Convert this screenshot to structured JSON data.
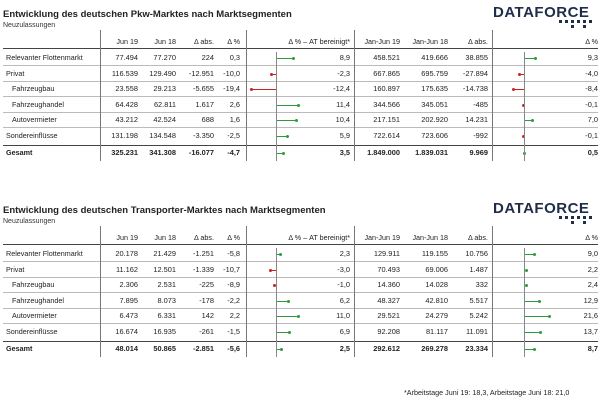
{
  "colors": {
    "positive": "#2e9a3a",
    "negative": "#cc2222",
    "brand": "#1f2d4a"
  },
  "brand": {
    "logo_text": "DATAFORCE"
  },
  "columns": [
    "Jun 19",
    "Jun 18",
    "Δ abs.",
    "Δ %",
    "Δ % – AT bereinigt*",
    "Jan-Jun 19",
    "Jan-Jun 18",
    "Δ abs.",
    "Δ %"
  ],
  "tables": [
    {
      "title": "Entwicklung des deutschen Pkw-Marktes nach Marktsegmenten",
      "subtitle": "Neuzulassungen",
      "rows": [
        {
          "label": "Relevanter Flottenmarkt",
          "jun19": "77.494",
          "jun18": "77.270",
          "dabs": "224",
          "dpct": "0,3",
          "at": "8,9",
          "at_val": 8.9,
          "hy19": "458.521",
          "hy18": "419.666",
          "hyabs": "38.855",
          "hypct": "9,3",
          "hy_val": 9.3
        },
        {
          "label": "Privat",
          "jun19": "116.539",
          "jun18": "129.490",
          "dabs": "-12.951",
          "dpct": "-10,0",
          "at": "-2,3",
          "at_val": -2.3,
          "hy19": "667.865",
          "hy18": "695.759",
          "hyabs": "-27.894",
          "hypct": "-4,0",
          "hy_val": -4.0
        },
        {
          "label": "Fahrzeugbau",
          "jun19": "23.558",
          "jun18": "29.213",
          "dabs": "-5.655",
          "dpct": "-19,4",
          "at": "-12,4",
          "at_val": -12.4,
          "hy19": "160.897",
          "hy18": "175.635",
          "hyabs": "-14.738",
          "hypct": "-8,4",
          "hy_val": -8.4
        },
        {
          "label": "Fahrzeughandel",
          "jun19": "64.428",
          "jun18": "62.811",
          "dabs": "1.617",
          "dpct": "2,6",
          "at": "11,4",
          "at_val": 11.4,
          "hy19": "344.566",
          "hy18": "345.051",
          "hyabs": "-485",
          "hypct": "-0,1",
          "hy_val": -0.1
        },
        {
          "label": "Autovermieter",
          "jun19": "43.212",
          "jun18": "42.524",
          "dabs": "688",
          "dpct": "1,6",
          "at": "10,4",
          "at_val": 10.4,
          "hy19": "217.151",
          "hy18": "202.920",
          "hyabs": "14.231",
          "hypct": "7,0",
          "hy_val": 7.0
        },
        {
          "label": "Sondereinflüsse",
          "jun19": "131.198",
          "jun18": "134.548",
          "dabs": "-3.350",
          "dpct": "-2,5",
          "at": "5,9",
          "at_val": 5.9,
          "hy19": "722.614",
          "hy18": "723.606",
          "hyabs": "-992",
          "hypct": "-0,1",
          "hy_val": -0.1
        }
      ],
      "total": {
        "label": "Gesamt",
        "jun19": "325.231",
        "jun18": "341.308",
        "dabs": "-16.077",
        "dpct": "-4,7",
        "at": "3,5",
        "at_val": 3.5,
        "hy19": "1.849.000",
        "hy18": "1.839.031",
        "hyabs": "9.969",
        "hypct": "0,5",
        "hy_val": 0.5
      }
    },
    {
      "title": "Entwicklung des deutschen Transporter-Marktes nach Marktsegmenten",
      "subtitle": "Neuzulassungen",
      "rows": [
        {
          "label": "Relevanter Flottenmarkt",
          "jun19": "20.178",
          "jun18": "21.429",
          "dabs": "-1.251",
          "dpct": "-5,8",
          "at": "2,3",
          "at_val": 2.3,
          "hy19": "129.911",
          "hy18": "119.155",
          "hyabs": "10.756",
          "hypct": "9,0",
          "hy_val": 9.0
        },
        {
          "label": "Privat",
          "jun19": "11.162",
          "jun18": "12.501",
          "dabs": "-1.339",
          "dpct": "-10,7",
          "at": "-3,0",
          "at_val": -3.0,
          "hy19": "70.493",
          "hy18": "69.006",
          "hyabs": "1.487",
          "hypct": "2,2",
          "hy_val": 2.2
        },
        {
          "label": "Fahrzeugbau",
          "jun19": "2.306",
          "jun18": "2.531",
          "dabs": "-225",
          "dpct": "-8,9",
          "at": "-1,0",
          "at_val": -1.0,
          "hy19": "14.360",
          "hy18": "14.028",
          "hyabs": "332",
          "hypct": "2,4",
          "hy_val": 2.4
        },
        {
          "label": "Fahrzeughandel",
          "jun19": "7.895",
          "jun18": "8.073",
          "dabs": "-178",
          "dpct": "-2,2",
          "at": "6,2",
          "at_val": 6.2,
          "hy19": "48.327",
          "hy18": "42.810",
          "hyabs": "5.517",
          "hypct": "12,9",
          "hy_val": 12.9
        },
        {
          "label": "Autovermieter",
          "jun19": "6.473",
          "jun18": "6.331",
          "dabs": "142",
          "dpct": "2,2",
          "at": "11,0",
          "at_val": 11.0,
          "hy19": "29.521",
          "hy18": "24.279",
          "hyabs": "5.242",
          "hypct": "21,6",
          "hy_val": 21.6
        },
        {
          "label": "Sondereinflüsse",
          "jun19": "16.674",
          "jun18": "16.935",
          "dabs": "-261",
          "dpct": "-1,5",
          "at": "6,9",
          "at_val": 6.9,
          "hy19": "92.208",
          "hy18": "81.117",
          "hyabs": "11.091",
          "hypct": "13,7",
          "hy_val": 13.7
        }
      ],
      "total": {
        "label": "Gesamt",
        "jun19": "48.014",
        "jun18": "50.865",
        "dabs": "-2.851",
        "dpct": "-5,6",
        "at": "2,5",
        "at_val": 2.5,
        "hy19": "292.612",
        "hy18": "269.278",
        "hyabs": "23.334",
        "hypct": "8,7",
        "hy_val": 8.7
      }
    }
  ],
  "footnote": "*Arbeitstage Juni 19: 18,3, Arbeitstage Juni 18: 21,0"
}
